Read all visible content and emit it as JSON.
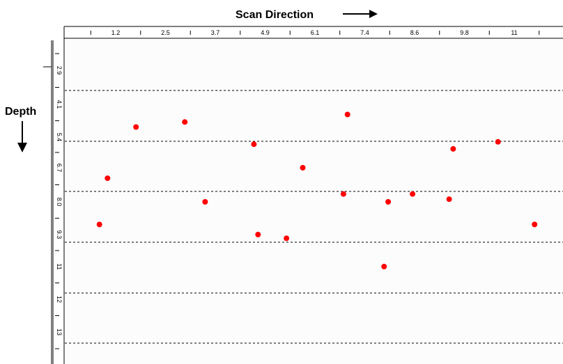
{
  "scan_direction_label": "Scan Direction",
  "depth_label": "Depth",
  "colors": {
    "background": "#ffffff",
    "plot_background": "#fcfcfc",
    "point": "#ff0000",
    "gridline": "#000000"
  },
  "chart_data": {
    "type": "scatter",
    "x_tick_labels": [
      "1.2",
      "2.5",
      "3.7",
      "4.9",
      "6.1",
      "7.4",
      "8.6",
      "9.8",
      "11"
    ],
    "y_tick_labels": [
      "2.9",
      "4.1",
      "5.4",
      "6.7",
      "8.0",
      "9.3",
      "11",
      "12",
      "13"
    ],
    "x_axis_position": "top",
    "y_axis_direction": "down",
    "grid": "horizontal-dashed",
    "points": [
      {
        "x": 0.8,
        "y": 8.9
      },
      {
        "x": 1.0,
        "y": 7.1
      },
      {
        "x": 1.7,
        "y": 5.0
      },
      {
        "x": 2.9,
        "y": 4.8
      },
      {
        "x": 3.4,
        "y": 8.0
      },
      {
        "x": 4.6,
        "y": 5.7
      },
      {
        "x": 4.7,
        "y": 9.3
      },
      {
        "x": 5.4,
        "y": 9.5
      },
      {
        "x": 5.8,
        "y": 6.7
      },
      {
        "x": 6.8,
        "y": 7.7
      },
      {
        "x": 6.9,
        "y": 4.5
      },
      {
        "x": 7.8,
        "y": 11.0
      },
      {
        "x": 7.9,
        "y": 8.0
      },
      {
        "x": 8.5,
        "y": 7.7
      },
      {
        "x": 9.4,
        "y": 7.9
      },
      {
        "x": 9.5,
        "y": 5.9
      },
      {
        "x": 10.6,
        "y": 5.6
      },
      {
        "x": 11.5,
        "y": 8.9
      }
    ]
  }
}
